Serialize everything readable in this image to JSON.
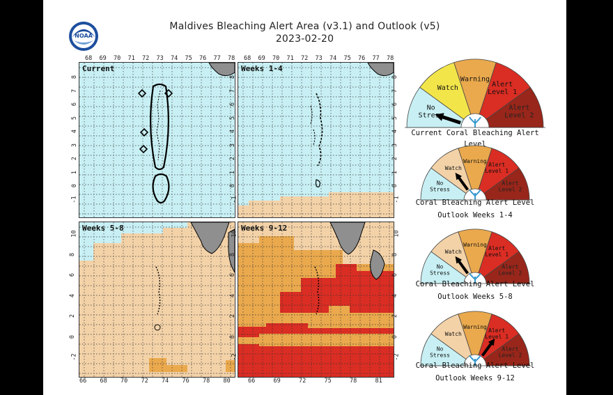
{
  "title": "Maldives Bleaching Alert Area (v3.1) and Outlook (v5)",
  "date": "2023-02-20",
  "logo_text": "NOAA",
  "colors": {
    "no_stress": "#c8f0f4",
    "watch": "#f3d2a8",
    "warning": "#eaa94d",
    "alert_level_1": "#da2d23",
    "alert_level_2": "#98261a",
    "watch_current_gauge": "#f2e54a",
    "land": "#8f8f8f",
    "grid": "#333333"
  },
  "top_lon_ticks": [
    "68",
    "69",
    "70",
    "71",
    "72",
    "73",
    "74",
    "75",
    "76",
    "77",
    "78"
  ],
  "left_lat_ticks_top": [
    "8",
    "7",
    "6",
    "5",
    "4",
    "3",
    "2",
    "1",
    "0",
    "-1"
  ],
  "left_lat_ticks_bottom": [
    "10",
    "8",
    "6",
    "4",
    "2",
    "0",
    "-2"
  ],
  "bottom_lon_ticks_left": [
    "66",
    "68",
    "70",
    "72",
    "74",
    "76",
    "78",
    "80"
  ],
  "bottom_lon_ticks_right": [
    "66",
    "69",
    "72",
    "75",
    "78",
    "81"
  ],
  "panels": [
    {
      "label": "Current"
    },
    {
      "label": "Weeks 1-4"
    },
    {
      "label": "Weeks 5-8"
    },
    {
      "label": "Weeks 9-12"
    }
  ],
  "gauges": [
    {
      "caption_lines": [
        "Current Coral Bleaching Alert Level"
      ],
      "level": "No Stress",
      "watch_color": "yellow",
      "labels": {
        "no_stress": "No Stress",
        "watch": "Watch",
        "warning": "Warning",
        "alert1": "Alert Level 1",
        "alert2": "Alert Level 2"
      }
    },
    {
      "caption_lines": [
        "Coral Bleaching Alert Level",
        "Outlook Weeks 1-4"
      ],
      "level": "Watch",
      "labels": {
        "no_stress": "No Stress",
        "watch": "Watch",
        "warning": "Warning",
        "alert1": "Alert Level 1",
        "alert2": "Alert Level 2"
      }
    },
    {
      "caption_lines": [
        "Coral Bleaching Alert Level",
        "Outlook Weeks 5-8"
      ],
      "level": "Watch",
      "labels": {
        "no_stress": "No Stress",
        "watch": "Watch",
        "warning": "Warning",
        "alert1": "Alert Level 1",
        "alert2": "Alert Level 2"
      }
    },
    {
      "caption_lines": [
        "Coral Bleaching Alert Level",
        "Outlook Weeks 9-12"
      ],
      "level": "Alert Level 1",
      "labels": {
        "no_stress": "No Stress",
        "watch": "Watch",
        "warning": "Warning",
        "alert1": "Alert Level 1",
        "alert2": "Alert Level 2"
      }
    }
  ]
}
